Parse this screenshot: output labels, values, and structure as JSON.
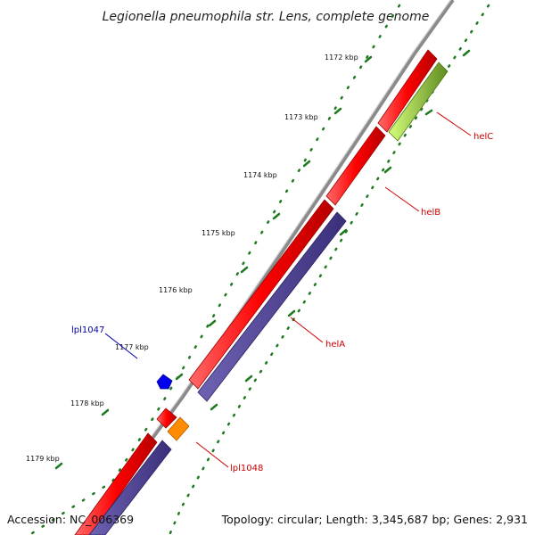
{
  "title": "Legionella pneumophila str. Lens, complete genome",
  "footer": {
    "accession": "Accession: NC_006369",
    "stats": "Topology: circular; Length: 3,345,687 bp; Genes: 2,931"
  },
  "colors": {
    "backbone": "#8a8a8a",
    "forward_gene": "#ff0000",
    "reverse_gene": "#4b3f8f",
    "green_gene": "#8bdc2a",
    "orange_gene": "#ff8c00",
    "small_blue_gene": "#0000ee",
    "tick_dots": "#1f7a1f",
    "label_red": "#cc0000",
    "label_blue": "#0000aa"
  },
  "scale_ticks": [
    {
      "label": "1172 kbp"
    },
    {
      "label": "1173 kbp"
    },
    {
      "label": "1174 kbp"
    },
    {
      "label": "1175 kbp"
    },
    {
      "label": "1176 kbp"
    },
    {
      "label": "1177 kbp"
    },
    {
      "label": "1178 kbp"
    },
    {
      "label": "1179 kbp"
    }
  ],
  "gene_labels": [
    {
      "name": "helC",
      "color": "red"
    },
    {
      "name": "helB",
      "color": "red"
    },
    {
      "name": "helA",
      "color": "red"
    },
    {
      "name": "lpl1047",
      "color": "blue"
    },
    {
      "name": "lpl1048",
      "color": "red"
    }
  ]
}
